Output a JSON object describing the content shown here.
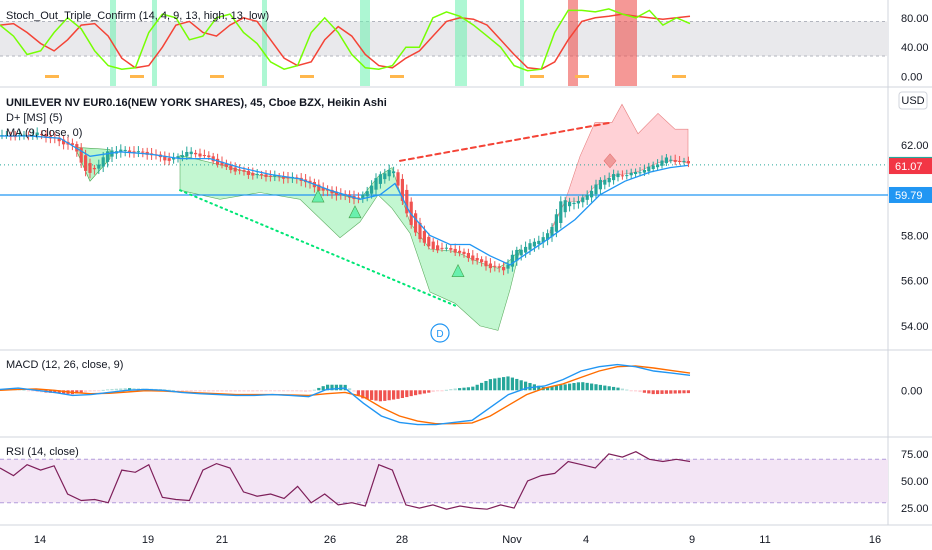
{
  "colors": {
    "up": "#26a69a",
    "down": "#ef5350",
    "ma": "#2196f3",
    "level": "#2196f3",
    "dplus_up_fill": "#b9f6ca",
    "dplus_down_fill": "#ffcdd2",
    "stoch_k": "#76ff03",
    "stoch_d": "#f44336",
    "macd": "#2196f3",
    "signal": "#ff6d00",
    "rsi": "#7e1f5a",
    "rsi_band": "#f3e5f5",
    "tag_blue": "#2196f3",
    "tag_teal": "#26a69a",
    "tag_red": "#f23645"
  },
  "header": {
    "title": "UNILEVER NV EUR0.16(NEW YORK SHARES), 45, Cboe BZX, Heikin Ashi",
    "indicator_dplus": "D+ [MS] (5)",
    "indicator_ma": "MA (9, close, 0)",
    "currency": "USD"
  },
  "panes": {
    "stoch_label": "Stoch_Out_Triple_Confirm (14, 4, 9, 13, high, 13, low)",
    "macd_label": "MACD (12, 26, close, 9)",
    "rsi_label": "RSI (14, close)"
  },
  "axes": {
    "stoch_ticks": [
      "80.00",
      "40.00",
      "0.00"
    ],
    "price_ticks": [
      "62.00",
      "58.00",
      "56.00",
      "54.00"
    ],
    "macd_ticks": [
      "0.00"
    ],
    "rsi_ticks": [
      "75.00",
      "50.00",
      "25.00"
    ],
    "date_ticks": [
      "14",
      "19",
      "21",
      "26",
      "28",
      "Nov",
      "4",
      "9",
      "11",
      "16"
    ]
  },
  "price_tags": {
    "last": "61.12",
    "ma": "61.07",
    "level": "59.79"
  },
  "divergence_label": "D",
  "chart_data": [
    {
      "type": "candlestick",
      "title": "UNILEVER NV EUR0.16(NEW YORK SHARES), 45, Cboe BZX, Heikin Ashi",
      "x_ticks": [
        "14",
        "19",
        "21",
        "26",
        "28",
        "Nov",
        "4",
        "9",
        "11",
        "16"
      ],
      "y_ticks": [
        62,
        58,
        56,
        54
      ],
      "ylim": [
        53.2,
        64.3
      ],
      "grid": false,
      "series": [
        {
          "name": "Heikin Ashi",
          "points": [
            [
              0,
              62.4
            ],
            [
              20,
              62.4
            ],
            [
              38,
              62.5
            ],
            [
              57,
              62.2
            ],
            [
              75,
              61.9
            ],
            [
              88,
              60.6
            ],
            [
              110,
              61.8
            ],
            [
              135,
              61.7
            ],
            [
              150,
              61.6
            ],
            [
              170,
              61.3
            ],
            [
              186,
              61.7
            ],
            [
              205,
              61.5
            ],
            [
              225,
              61.0
            ],
            [
              250,
              60.7
            ],
            [
              275,
              60.6
            ],
            [
              300,
              60.5
            ],
            [
              320,
              60.0
            ],
            [
              340,
              59.8
            ],
            [
              360,
              59.6
            ],
            [
              378,
              60.6
            ],
            [
              392,
              61.0
            ],
            [
              403,
              59.5
            ],
            [
              412,
              58.3
            ],
            [
              430,
              57.4
            ],
            [
              450,
              57.4
            ],
            [
              470,
              57.0
            ],
            [
              490,
              56.6
            ],
            [
              505,
              56.5
            ],
            [
              515,
              57.3
            ],
            [
              530,
              57.6
            ],
            [
              550,
              58.1
            ],
            [
              560,
              59.5
            ],
            [
              580,
              59.5
            ],
            [
              600,
              60.4
            ],
            [
              615,
              60.7
            ],
            [
              630,
              60.7
            ],
            [
              650,
              61.0
            ],
            [
              665,
              61.4
            ],
            [
              688,
              61.2
            ]
          ]
        },
        {
          "name": "MA (9, close, 0)",
          "points": [
            [
              0,
              62.4
            ],
            [
              30,
              62.4
            ],
            [
              60,
              62.3
            ],
            [
              90,
              61.5
            ],
            [
              120,
              61.7
            ],
            [
              150,
              61.6
            ],
            [
              180,
              61.4
            ],
            [
              210,
              61.4
            ],
            [
              240,
              61.0
            ],
            [
              270,
              60.7
            ],
            [
              300,
              60.5
            ],
            [
              330,
              60.0
            ],
            [
              360,
              59.6
            ],
            [
              380,
              59.8
            ],
            [
              395,
              60.3
            ],
            [
              410,
              59.0
            ],
            [
              430,
              58.0
            ],
            [
              450,
              57.6
            ],
            [
              470,
              57.6
            ],
            [
              490,
              57.1
            ],
            [
              510,
              56.7
            ],
            [
              530,
              57.3
            ],
            [
              550,
              57.9
            ],
            [
              575,
              58.7
            ],
            [
              600,
              59.8
            ],
            [
              625,
              60.4
            ],
            [
              650,
              60.8
            ],
            [
              670,
              61.0
            ],
            [
              688,
              61.1
            ]
          ]
        }
      ],
      "levels": [
        59.79
      ],
      "last": 61.12,
      "ma_last": 61.07,
      "divergences": [
        {
          "from": [
            180,
            60.0
          ],
          "to": [
            455,
            54.9
          ],
          "style": "dotted",
          "color": "green"
        },
        {
          "from": [
            400,
            61.3
          ],
          "to": [
            612,
            63.0
          ],
          "style": "dashed",
          "color": "red"
        }
      ],
      "markers": [
        {
          "x": 318,
          "y": 59.7,
          "shape": "triangle-up",
          "color": "green"
        },
        {
          "x": 355,
          "y": 59.0,
          "shape": "triangle-up",
          "color": "green"
        },
        {
          "x": 458,
          "y": 56.4,
          "shape": "triangle-up",
          "color": "green"
        },
        {
          "x": 610,
          "y": 61.3,
          "shape": "diamond",
          "color": "red"
        }
      ]
    },
    {
      "type": "line",
      "title": "Stoch_Out_Triple_Confirm (14, 4, 9, 13, high, 13, low)",
      "y_ticks": [
        80,
        40,
        0
      ],
      "ylim": [
        -6,
        96
      ],
      "series": [
        {
          "name": "",
          "values": [
            70,
            55,
            30,
            35,
            60,
            80,
            65,
            35,
            15,
            10,
            12,
            60,
            85,
            80,
            50,
            55,
            80,
            85,
            60,
            45,
            20,
            10,
            15,
            60,
            80,
            60,
            30,
            12,
            10,
            15,
            40,
            40,
            80,
            88,
            82,
            70,
            55,
            40,
            15,
            8,
            10,
            60,
            90,
            90,
            88,
            92,
            85,
            80,
            90,
            70,
            80,
            72
          ]
        },
        {
          "name": "",
          "values": [
            70,
            72,
            60,
            45,
            35,
            50,
            70,
            72,
            55,
            25,
            12,
            15,
            40,
            70,
            75,
            60,
            55,
            70,
            80,
            75,
            50,
            25,
            15,
            20,
            50,
            68,
            55,
            30,
            15,
            12,
            25,
            35,
            55,
            75,
            80,
            78,
            70,
            50,
            30,
            12,
            10,
            20,
            50,
            75,
            80,
            82,
            85,
            82,
            80,
            78,
            80,
            82
          ]
        }
      ]
    },
    {
      "type": "line",
      "title": "MACD (12, 26, close, 9)",
      "y_ticks": [
        0
      ],
      "ylim": [
        -0.95,
        0.8
      ],
      "series": [
        {
          "name": "",
          "values": [
            0.02,
            0.05,
            0.0,
            -0.05,
            -0.12,
            -0.1,
            -0.05,
            0.0,
            0.02,
            0.0,
            -0.05,
            -0.08,
            -0.1,
            -0.12,
            -0.12,
            -0.1,
            -0.12,
            -0.15,
            0.02,
            0.05,
            -0.3,
            -0.6,
            -0.75,
            -0.8,
            -0.8,
            -0.75,
            -0.7,
            -0.4,
            -0.1,
            0.05,
            0.1,
            0.25,
            0.45,
            0.55,
            0.6,
            0.55,
            0.45,
            0.4,
            0.35
          ]
        },
        {
          "name": "",
          "values": [
            0.0,
            0.02,
            0.03,
            0.0,
            -0.05,
            -0.08,
            -0.07,
            -0.04,
            -0.01,
            -0.02,
            -0.04,
            -0.06,
            -0.08,
            -0.1,
            -0.1,
            -0.1,
            -0.11,
            -0.12,
            -0.08,
            -0.05,
            -0.15,
            -0.4,
            -0.6,
            -0.72,
            -0.78,
            -0.78,
            -0.76,
            -0.6,
            -0.35,
            -0.1,
            0.05,
            0.15,
            0.3,
            0.45,
            0.55,
            0.57,
            0.52,
            0.46,
            0.4
          ]
        }
      ]
    },
    {
      "type": "line",
      "title": "RSI (14, close)",
      "y_ticks": [
        75,
        50,
        25
      ],
      "ylim": [
        15,
        85
      ],
      "series": [
        {
          "name": "",
          "values": [
            62,
            55,
            65,
            60,
            64,
            38,
            32,
            33,
            30,
            60,
            58,
            65,
            35,
            33,
            32,
            60,
            66,
            62,
            40,
            36,
            38,
            34,
            45,
            30,
            38,
            28,
            30,
            27,
            65,
            60,
            28,
            25,
            28,
            24,
            27,
            25,
            24,
            28,
            25,
            50,
            55,
            57,
            68,
            65,
            62,
            75,
            72,
            77,
            70,
            68,
            70,
            68
          ]
        }
      ]
    }
  ]
}
